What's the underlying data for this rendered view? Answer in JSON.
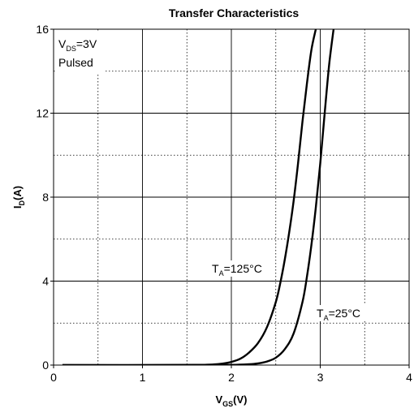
{
  "chart_data": {
    "type": "line",
    "title": "Transfer Characteristics",
    "xlabel": {
      "main": "V",
      "sub": "GS",
      "suffix": "(V)"
    },
    "ylabel": {
      "main": "I",
      "sub": "D",
      "suffix": "(A)"
    },
    "xlim": [
      0,
      4
    ],
    "ylim": [
      0,
      16
    ],
    "x_ticks": [
      "0",
      "1",
      "2",
      "3",
      "4"
    ],
    "y_ticks": [
      "0",
      "4",
      "8",
      "12",
      "16"
    ],
    "grid": true,
    "annotations": {
      "condition_line1": {
        "main": "V",
        "sub": "DS",
        "suffix": "=3V"
      },
      "condition_line2": "Pulsed",
      "series_125": {
        "main": "T",
        "sub": "A",
        "suffix": "=125°C"
      },
      "series_25": {
        "main": "T",
        "sub": "A",
        "suffix": "=25°C"
      }
    },
    "series": [
      {
        "name": "TA=125°C",
        "x": [
          0.1,
          1.0,
          1.6,
          1.8,
          1.9,
          2.0,
          2.1,
          2.2,
          2.3,
          2.4,
          2.5,
          2.55,
          2.6,
          2.65,
          2.7,
          2.75,
          2.8,
          2.85,
          2.9,
          2.95
        ],
        "y": [
          0,
          0,
          0.01,
          0.03,
          0.07,
          0.15,
          0.3,
          0.6,
          1.05,
          1.8,
          3.0,
          3.9,
          5.0,
          6.3,
          7.8,
          9.6,
          11.6,
          13.4,
          15.0,
          16.0
        ]
      },
      {
        "name": "TA=25°C",
        "x": [
          0.1,
          1.5,
          2.0,
          2.2,
          2.3,
          2.4,
          2.5,
          2.6,
          2.7,
          2.8,
          2.85,
          2.9,
          2.95,
          3.0,
          3.05,
          3.1,
          3.15
        ],
        "y": [
          0,
          0,
          0.01,
          0.04,
          0.08,
          0.17,
          0.35,
          0.75,
          1.5,
          3.0,
          4.2,
          5.7,
          7.5,
          9.6,
          12.0,
          14.3,
          16.0
        ]
      }
    ]
  }
}
